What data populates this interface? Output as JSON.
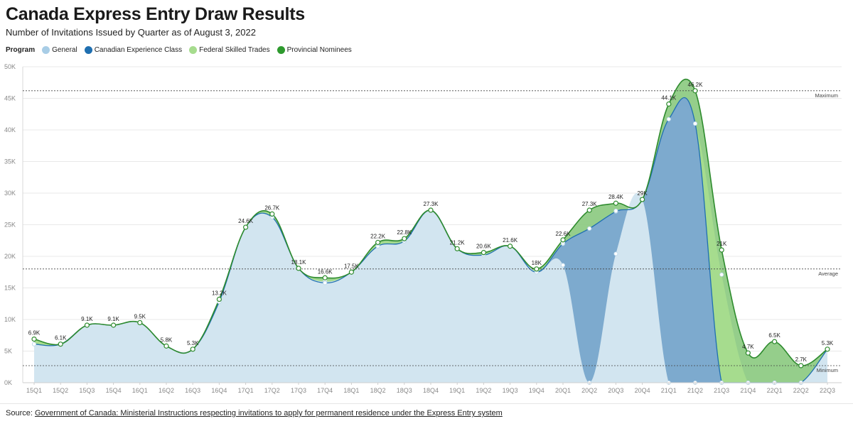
{
  "title": "Canada Express Entry Draw Results",
  "subtitle": "Number of Invitations Issued by Quarter as of August 3, 2022",
  "legend": {
    "heading": "Program",
    "items": [
      {
        "label": "General",
        "color": "#a8cde6"
      },
      {
        "label": "Canadian Experience Class",
        "color": "#1f6fb0"
      },
      {
        "label": "Federal Skilled Trades",
        "color": "#a6dc8e"
      },
      {
        "label": "Provincial Nominees",
        "color": "#2e9a2e"
      }
    ]
  },
  "source": {
    "prefix": "Source: ",
    "link_text": "Government of Canada: Ministerial Instructions respecting invitations to apply for permanent residence under the Express Entry system"
  },
  "chart_data": {
    "type": "area",
    "categories": [
      "15Q1",
      "15Q2",
      "15Q3",
      "15Q4",
      "16Q1",
      "16Q2",
      "16Q3",
      "16Q4",
      "17Q1",
      "17Q2",
      "17Q3",
      "17Q4",
      "18Q1",
      "18Q2",
      "18Q3",
      "18Q4",
      "19Q1",
      "19Q2",
      "19Q3",
      "19Q4",
      "20Q1",
      "20Q2",
      "20Q3",
      "20Q4",
      "21Q1",
      "21Q2",
      "21Q3",
      "21Q4",
      "22Q1",
      "22Q2",
      "22Q3"
    ],
    "ylim": [
      0,
      50000
    ],
    "yticks": [
      0,
      5000,
      10000,
      15000,
      20000,
      25000,
      30000,
      35000,
      40000,
      45000,
      50000
    ],
    "ytick_labels": [
      "0K",
      "5K",
      "10K",
      "15K",
      "20K",
      "25K",
      "30K",
      "35K",
      "40K",
      "45K",
      "50K"
    ],
    "series": [
      {
        "name": "General",
        "color": "#d2e5f0",
        "marker_color": "#a8cde6",
        "values": [
          6100,
          6100,
          9100,
          9100,
          9500,
          5800,
          5300,
          12800,
          24600,
          26200,
          18100,
          16000,
          17500,
          21600,
          22400,
          27300,
          21200,
          20200,
          21600,
          17500,
          18600,
          0,
          20400,
          29000,
          0,
          0,
          0,
          0,
          0,
          0,
          5300
        ]
      },
      {
        "name": "Canadian Experience Class",
        "color": "#7aa6d2",
        "marker_color": "#1f6fb0",
        "values": [
          6100,
          6100,
          9100,
          9100,
          9500,
          5800,
          5300,
          12800,
          24600,
          26200,
          18100,
          15800,
          17500,
          21600,
          22400,
          27300,
          21200,
          20200,
          21600,
          17500,
          22000,
          24400,
          27100,
          29000,
          41700,
          41000,
          0,
          0,
          0,
          0,
          5300
        ]
      },
      {
        "name": "Federal Skilled Trades",
        "color": "#a6dc8e",
        "marker_color": "#a6dc8e",
        "values": [
          6900,
          6100,
          9100,
          9100,
          9500,
          5800,
          5300,
          13200,
          24600,
          26500,
          18100,
          16300,
          17500,
          22000,
          22600,
          27300,
          21200,
          20400,
          21600,
          17800,
          22200,
          24400,
          27200,
          29000,
          41700,
          41000,
          17100,
          0,
          0,
          0,
          5300
        ]
      },
      {
        "name": "Provincial Nominees",
        "color": "#8fcb85",
        "marker_color": "#2e9a2e",
        "values": [
          6900,
          6100,
          9100,
          9100,
          9500,
          5800,
          5300,
          13200,
          24600,
          26700,
          18100,
          16600,
          17500,
          22200,
          22800,
          27300,
          21200,
          20600,
          21600,
          18000,
          22600,
          27300,
          28400,
          29000,
          44100,
          46200,
          21000,
          4700,
          6500,
          2700,
          5300
        ]
      }
    ],
    "data_labels": [
      "6.9K",
      "6.1K",
      "9.1K",
      "9.1K",
      "9.5K",
      "5.8K",
      "5.3K",
      "13.2K",
      "24.6K",
      "26.7K",
      "18.1K",
      "16.6K",
      "17.5K",
      "22.2K",
      "22.8K",
      "27.3K",
      "21.2K",
      "20.6K",
      "21.6K",
      "18K",
      "22.6K",
      "27.3K",
      "28.4K",
      "29K",
      "44.1K",
      "46.2K",
      "21K",
      "4.7K",
      "6.5K",
      "2.7K",
      "5.3K"
    ],
    "reference_lines": [
      {
        "label": "Maximum",
        "value": 46200
      },
      {
        "label": "Average",
        "value": 18000
      },
      {
        "label": "Minimum",
        "value": 2700
      }
    ]
  }
}
